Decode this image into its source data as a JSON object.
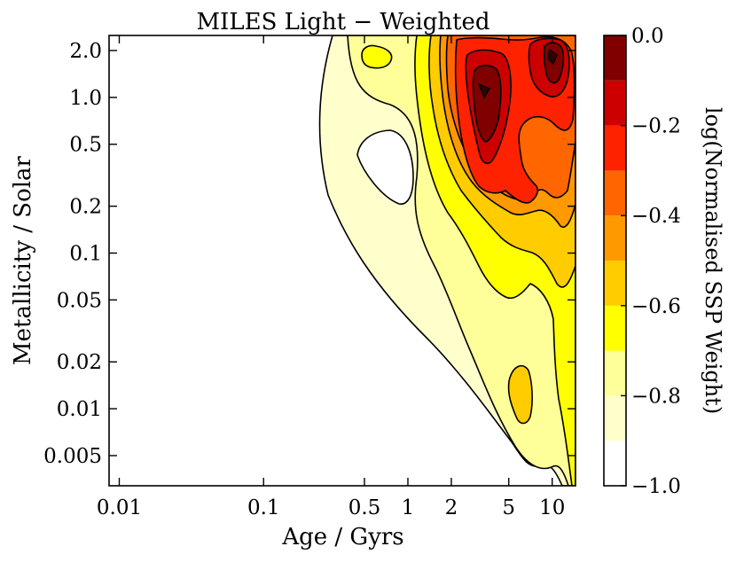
{
  "chart_data": {
    "type": "contour",
    "title": "MILES Light − Weighted",
    "xlabel": "Age / Gyrs",
    "ylabel": "Metallicity / Solar",
    "x_scale": "log",
    "y_scale": "log",
    "xlim": [
      0.0085,
      14.5
    ],
    "ylim": [
      0.0032,
      2.5
    ],
    "x_ticks": [
      {
        "value": 0.01,
        "label": "0.01"
      },
      {
        "value": 0.1,
        "label": "0.1"
      },
      {
        "value": 0.5,
        "label": "0.5"
      },
      {
        "value": 1,
        "label": "1"
      },
      {
        "value": 2,
        "label": "2"
      },
      {
        "value": 5,
        "label": "5"
      },
      {
        "value": 10,
        "label": "10"
      }
    ],
    "y_ticks": [
      {
        "value": 2.0,
        "label": "2.0"
      },
      {
        "value": 1.0,
        "label": "1.0"
      },
      {
        "value": 0.5,
        "label": "0.5"
      },
      {
        "value": 0.2,
        "label": "0.2"
      },
      {
        "value": 0.1,
        "label": "0.1"
      },
      {
        "value": 0.05,
        "label": "0.05"
      },
      {
        "value": 0.02,
        "label": "0.02"
      },
      {
        "value": 0.01,
        "label": "0.01"
      },
      {
        "value": 0.005,
        "label": "0.005"
      }
    ],
    "colorbar": {
      "label": "log(Normalised SSP Weight)",
      "range": [
        -1.0,
        0.0
      ],
      "levels": [
        -1.0,
        -0.9,
        -0.8,
        -0.7,
        -0.6,
        -0.5,
        -0.4,
        -0.3,
        -0.2,
        -0.1,
        0.0
      ],
      "colors": [
        "#ffffff",
        "#ffffcc",
        "#ffff99",
        "#ffff00",
        "#ffcc00",
        "#ff9900",
        "#ff6600",
        "#ff2200",
        "#cc0000",
        "#800000",
        "#330000"
      ],
      "ticks": [
        {
          "value": 0.0,
          "label": "0.0"
        },
        {
          "value": -0.2,
          "label": "−0.2"
        },
        {
          "value": -0.4,
          "label": "−0.4"
        },
        {
          "value": -0.6,
          "label": "−0.6"
        },
        {
          "value": -0.8,
          "label": "−0.8"
        },
        {
          "value": -1.0,
          "label": "−1.0"
        }
      ]
    },
    "peaks": [
      {
        "age": 3.2,
        "metallicity": 1.1,
        "value": -0.05
      },
      {
        "age": 9.5,
        "metallicity": 1.8,
        "value": -0.05
      },
      {
        "age": 0.55,
        "metallicity": 1.85,
        "value": -0.75
      },
      {
        "age": 5.7,
        "metallicity": 0.013,
        "value": -0.65
      }
    ],
    "grid": false
  }
}
